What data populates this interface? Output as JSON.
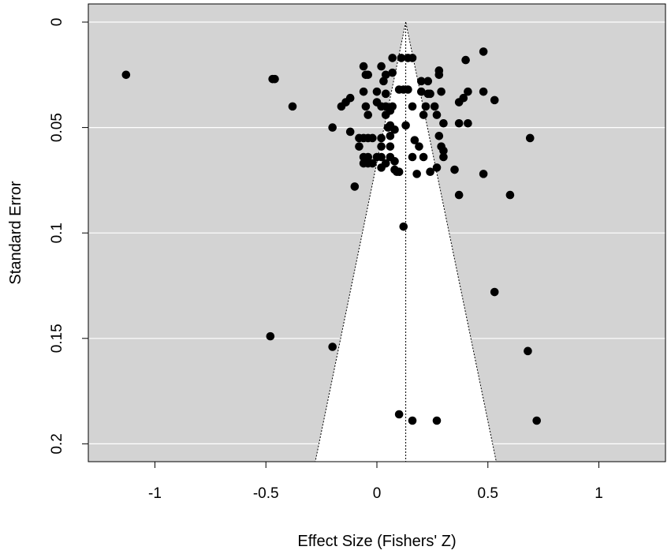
{
  "chart_data": {
    "type": "scatter",
    "subtype": "funnel plot",
    "title": "",
    "xlabel": "Effect Size (Fishers' Z)",
    "ylabel": "Standard Error",
    "xlim": [
      -1.3,
      1.3
    ],
    "ylim": [
      0.208,
      0
    ],
    "y_axis_inverted": true,
    "x_ticks": [
      -1,
      -0.5,
      0,
      0.5,
      1
    ],
    "x_tick_labels": [
      "-1",
      "-0.5",
      "0",
      "0.5",
      "1"
    ],
    "y_ticks": [
      0,
      0.05,
      0.1,
      0.15,
      0.2
    ],
    "y_tick_labels": [
      "0",
      "0.05",
      "0.1",
      "0.15",
      "0.2"
    ],
    "grid": "horizontal",
    "background_color": "#d3d3d3",
    "funnel_color": "#ffffff",
    "point_color": "#000000",
    "pooled_estimate": 0.13,
    "funnel_max_se": 0.208,
    "points": [
      {
        "x": -1.13,
        "y": 0.025
      },
      {
        "x": -0.47,
        "y": 0.027
      },
      {
        "x": -0.46,
        "y": 0.027
      },
      {
        "x": -0.38,
        "y": 0.04
      },
      {
        "x": -0.48,
        "y": 0.149
      },
      {
        "x": -0.2,
        "y": 0.154
      },
      {
        "x": -0.2,
        "y": 0.05
      },
      {
        "x": -0.16,
        "y": 0.04
      },
      {
        "x": -0.14,
        "y": 0.038
      },
      {
        "x": -0.12,
        "y": 0.036
      },
      {
        "x": -0.12,
        "y": 0.052
      },
      {
        "x": -0.1,
        "y": 0.078
      },
      {
        "x": -0.08,
        "y": 0.055
      },
      {
        "x": -0.08,
        "y": 0.059
      },
      {
        "x": -0.06,
        "y": 0.055
      },
      {
        "x": -0.06,
        "y": 0.064
      },
      {
        "x": -0.06,
        "y": 0.067
      },
      {
        "x": -0.06,
        "y": 0.021
      },
      {
        "x": -0.05,
        "y": 0.025
      },
      {
        "x": -0.04,
        "y": 0.025
      },
      {
        "x": -0.06,
        "y": 0.033
      },
      {
        "x": -0.05,
        "y": 0.04
      },
      {
        "x": -0.04,
        "y": 0.055
      },
      {
        "x": -0.04,
        "y": 0.064
      },
      {
        "x": -0.04,
        "y": 0.067
      },
      {
        "x": -0.04,
        "y": 0.044
      },
      {
        "x": -0.02,
        "y": 0.055
      },
      {
        "x": -0.02,
        "y": 0.067
      },
      {
        "x": 0.0,
        "y": 0.033
      },
      {
        "x": 0.0,
        "y": 0.038
      },
      {
        "x": 0.0,
        "y": 0.064
      },
      {
        "x": 0.02,
        "y": 0.021
      },
      {
        "x": 0.02,
        "y": 0.04
      },
      {
        "x": 0.02,
        "y": 0.055
      },
      {
        "x": 0.02,
        "y": 0.059
      },
      {
        "x": 0.02,
        "y": 0.064
      },
      {
        "x": 0.02,
        "y": 0.069
      },
      {
        "x": 0.03,
        "y": 0.028
      },
      {
        "x": 0.04,
        "y": 0.025
      },
      {
        "x": 0.04,
        "y": 0.034
      },
      {
        "x": 0.04,
        "y": 0.04
      },
      {
        "x": 0.04,
        "y": 0.044
      },
      {
        "x": 0.04,
        "y": 0.067
      },
      {
        "x": 0.05,
        "y": 0.05
      },
      {
        "x": 0.06,
        "y": 0.049
      },
      {
        "x": 0.06,
        "y": 0.042
      },
      {
        "x": 0.06,
        "y": 0.054
      },
      {
        "x": 0.06,
        "y": 0.059
      },
      {
        "x": 0.06,
        "y": 0.064
      },
      {
        "x": 0.07,
        "y": 0.017
      },
      {
        "x": 0.07,
        "y": 0.024
      },
      {
        "x": 0.07,
        "y": 0.04
      },
      {
        "x": 0.08,
        "y": 0.051
      },
      {
        "x": 0.08,
        "y": 0.066
      },
      {
        "x": 0.08,
        "y": 0.07
      },
      {
        "x": 0.09,
        "y": 0.071
      },
      {
        "x": 0.1,
        "y": 0.032
      },
      {
        "x": 0.1,
        "y": 0.071
      },
      {
        "x": 0.1,
        "y": 0.186
      },
      {
        "x": 0.11,
        "y": 0.017
      },
      {
        "x": 0.12,
        "y": 0.032
      },
      {
        "x": 0.12,
        "y": 0.097
      },
      {
        "x": 0.13,
        "y": 0.049
      },
      {
        "x": 0.14,
        "y": 0.017
      },
      {
        "x": 0.14,
        "y": 0.032
      },
      {
        "x": 0.16,
        "y": 0.017
      },
      {
        "x": 0.16,
        "y": 0.04
      },
      {
        "x": 0.16,
        "y": 0.064
      },
      {
        "x": 0.16,
        "y": 0.189
      },
      {
        "x": 0.17,
        "y": 0.056
      },
      {
        "x": 0.18,
        "y": 0.072
      },
      {
        "x": 0.19,
        "y": 0.059
      },
      {
        "x": 0.2,
        "y": 0.028
      },
      {
        "x": 0.2,
        "y": 0.033
      },
      {
        "x": 0.21,
        "y": 0.044
      },
      {
        "x": 0.21,
        "y": 0.064
      },
      {
        "x": 0.22,
        "y": 0.04
      },
      {
        "x": 0.23,
        "y": 0.028
      },
      {
        "x": 0.23,
        "y": 0.034
      },
      {
        "x": 0.24,
        "y": 0.034
      },
      {
        "x": 0.24,
        "y": 0.071
      },
      {
        "x": 0.26,
        "y": 0.04
      },
      {
        "x": 0.27,
        "y": 0.044
      },
      {
        "x": 0.27,
        "y": 0.069
      },
      {
        "x": 0.27,
        "y": 0.189
      },
      {
        "x": 0.28,
        "y": 0.023
      },
      {
        "x": 0.28,
        "y": 0.025
      },
      {
        "x": 0.28,
        "y": 0.054
      },
      {
        "x": 0.29,
        "y": 0.033
      },
      {
        "x": 0.29,
        "y": 0.059
      },
      {
        "x": 0.3,
        "y": 0.048
      },
      {
        "x": 0.3,
        "y": 0.061
      },
      {
        "x": 0.3,
        "y": 0.064
      },
      {
        "x": 0.35,
        "y": 0.07
      },
      {
        "x": 0.37,
        "y": 0.038
      },
      {
        "x": 0.37,
        "y": 0.048
      },
      {
        "x": 0.37,
        "y": 0.082
      },
      {
        "x": 0.39,
        "y": 0.036
      },
      {
        "x": 0.4,
        "y": 0.018
      },
      {
        "x": 0.41,
        "y": 0.033
      },
      {
        "x": 0.41,
        "y": 0.048
      },
      {
        "x": 0.48,
        "y": 0.014
      },
      {
        "x": 0.48,
        "y": 0.033
      },
      {
        "x": 0.48,
        "y": 0.072
      },
      {
        "x": 0.53,
        "y": 0.037
      },
      {
        "x": 0.53,
        "y": 0.128
      },
      {
        "x": 0.6,
        "y": 0.082
      },
      {
        "x": 0.68,
        "y": 0.156
      },
      {
        "x": 0.69,
        "y": 0.055
      },
      {
        "x": 0.72,
        "y": 0.189
      }
    ]
  }
}
